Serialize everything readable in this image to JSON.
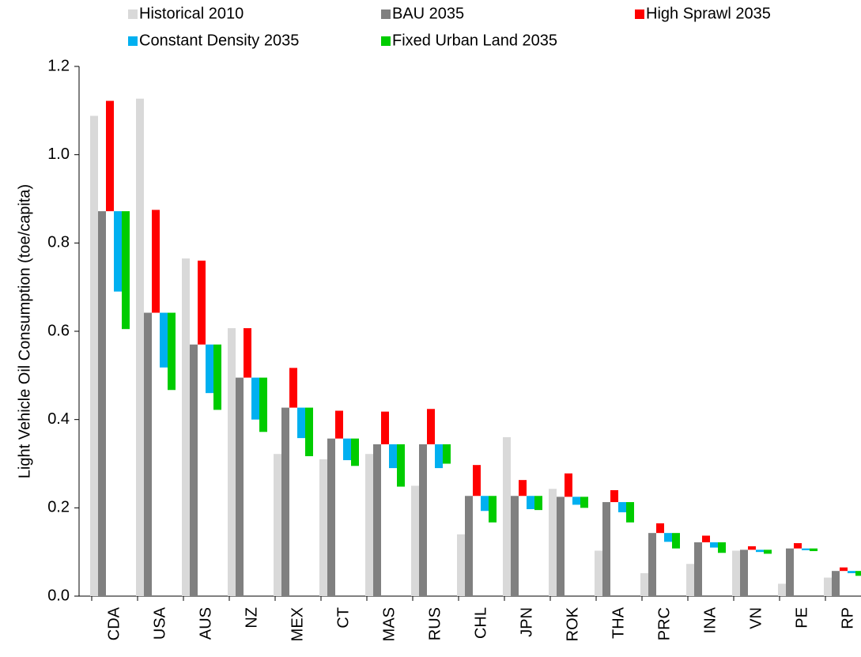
{
  "chart_data": {
    "type": "bar",
    "y_label": "Light Vehicle Oil Consumption (toe/capita)",
    "categories": [
      "CDA",
      "USA",
      "AUS",
      "NZ",
      "MEX",
      "CT",
      "MAS",
      "RUS",
      "CHL",
      "JPN",
      "ROK",
      "THA",
      "PRC",
      "INA",
      "VN",
      "PE",
      "RP"
    ],
    "series": [
      {
        "name": "Historical 2010",
        "color": "#d9d9d9",
        "values": [
          1.088,
          1.127,
          0.765,
          0.607,
          0.322,
          0.31,
          0.322,
          0.25,
          0.14,
          0.36,
          0.243,
          0.103,
          0.052,
          0.073,
          0.103,
          0.028,
          0.042
        ]
      },
      {
        "name": "BAU 2035",
        "color": "#808080",
        "values": [
          0.872,
          0.642,
          0.57,
          0.495,
          0.427,
          0.357,
          0.344,
          0.344,
          0.227,
          0.227,
          0.225,
          0.213,
          0.143,
          0.122,
          0.105,
          0.108,
          0.057
        ]
      },
      {
        "name": "High Sprawl 2035",
        "color": "#ff0000",
        "values": [
          1.122,
          0.875,
          0.76,
          0.607,
          0.517,
          0.42,
          0.418,
          0.424,
          0.297,
          0.263,
          0.278,
          0.24,
          0.165,
          0.137,
          0.113,
          0.12,
          0.065
        ]
      },
      {
        "name": "Constant Density 2035",
        "color": "#00b0f0",
        "values": [
          0.69,
          0.518,
          0.46,
          0.4,
          0.358,
          0.308,
          0.29,
          0.29,
          0.193,
          0.197,
          0.207,
          0.19,
          0.123,
          0.11,
          0.1,
          0.104,
          0.052
        ]
      },
      {
        "name": "Fixed Urban Land 2035",
        "color": "#00cc00",
        "values": [
          0.605,
          0.467,
          0.422,
          0.372,
          0.317,
          0.295,
          0.248,
          0.3,
          0.167,
          0.195,
          0.2,
          0.167,
          0.108,
          0.098,
          0.096,
          0.102,
          0.046
        ]
      }
    ],
    "ylim": [
      0,
      1.2
    ],
    "yticks": [
      {
        "value": 0,
        "label": "0.0"
      },
      {
        "value": 0.2,
        "label": "0.2"
      },
      {
        "value": 0.4,
        "label": "0.4"
      },
      {
        "value": 0.6,
        "label": "0.6"
      },
      {
        "value": 0.8,
        "label": "0.8"
      },
      {
        "value": 1.0,
        "label": "1.0"
      },
      {
        "value": 1.2,
        "label": "1.2"
      }
    ]
  }
}
